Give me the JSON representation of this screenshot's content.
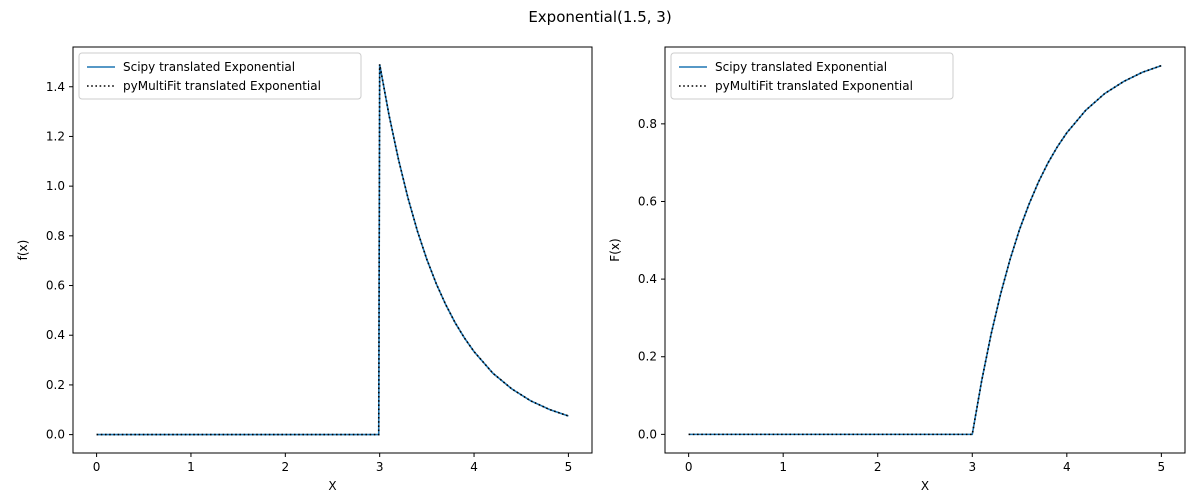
{
  "figure": {
    "suptitle": "Exponential(1.5, 3)"
  },
  "colors": {
    "scipy": "#1f77b4",
    "pymultifit": "#000000"
  },
  "chart_data": [
    {
      "type": "line",
      "title": "",
      "xlabel": "X",
      "ylabel": "f(x)",
      "xlim": [
        -0.25,
        5.25
      ],
      "ylim": [
        -0.074,
        1.56
      ],
      "xticks": [
        0,
        1,
        2,
        3,
        4,
        5
      ],
      "xtick_labels": [
        "0",
        "1",
        "2",
        "3",
        "4",
        "5"
      ],
      "yticks": [
        0.0,
        0.2,
        0.4,
        0.6,
        0.8,
        1.0,
        1.2,
        1.4
      ],
      "ytick_labels": [
        "0.0",
        "0.2",
        "0.4",
        "0.6",
        "0.8",
        "1.0",
        "1.2",
        "1.4"
      ],
      "grid": false,
      "legend": "top-left",
      "series": [
        {
          "name": "Scipy translated Exponential",
          "style": "solid",
          "x": [
            0,
            0.5,
            1,
            1.5,
            2,
            2.5,
            2.99,
            3.0,
            3.1,
            3.2,
            3.3,
            3.4,
            3.5,
            3.6,
            3.7,
            3.8,
            3.9,
            4.0,
            4.2,
            4.4,
            4.6,
            4.8,
            5.0
          ],
          "y": [
            0,
            0,
            0,
            0,
            0,
            0,
            0,
            1.49,
            1.284,
            1.106,
            0.952,
            0.819,
            0.705,
            0.607,
            0.523,
            0.45,
            0.388,
            0.334,
            0.247,
            0.184,
            0.136,
            0.101,
            0.075
          ]
        },
        {
          "name": "pyMultiFit translated Exponential",
          "style": "dotted",
          "x": [
            0,
            0.5,
            1,
            1.5,
            2,
            2.5,
            2.99,
            3.0,
            3.1,
            3.2,
            3.3,
            3.4,
            3.5,
            3.6,
            3.7,
            3.8,
            3.9,
            4.0,
            4.2,
            4.4,
            4.6,
            4.8,
            5.0
          ],
          "y": [
            0,
            0,
            0,
            0,
            0,
            0,
            0,
            1.49,
            1.284,
            1.106,
            0.952,
            0.819,
            0.705,
            0.607,
            0.523,
            0.45,
            0.388,
            0.334,
            0.247,
            0.184,
            0.136,
            0.101,
            0.075
          ]
        }
      ]
    },
    {
      "type": "line",
      "title": "",
      "xlabel": "X",
      "ylabel": "F(x)",
      "xlim": [
        -0.25,
        5.25
      ],
      "ylim": [
        -0.048,
        0.998
      ],
      "xticks": [
        0,
        1,
        2,
        3,
        4,
        5
      ],
      "xtick_labels": [
        "0",
        "1",
        "2",
        "3",
        "4",
        "5"
      ],
      "yticks": [
        0.0,
        0.2,
        0.4,
        0.6,
        0.8
      ],
      "ytick_labels": [
        "0.0",
        "0.2",
        "0.4",
        "0.6",
        "0.8"
      ],
      "grid": false,
      "legend": "top-left",
      "series": [
        {
          "name": "Scipy translated Exponential",
          "style": "solid",
          "x": [
            0,
            0.5,
            1,
            1.5,
            2,
            2.5,
            3.0,
            3.1,
            3.2,
            3.3,
            3.4,
            3.5,
            3.6,
            3.7,
            3.8,
            3.9,
            4.0,
            4.2,
            4.4,
            4.6,
            4.8,
            5.0
          ],
          "y": [
            0,
            0,
            0,
            0,
            0,
            0,
            0,
            0.139,
            0.259,
            0.362,
            0.451,
            0.528,
            0.593,
            0.65,
            0.699,
            0.741,
            0.777,
            0.835,
            0.878,
            0.909,
            0.933,
            0.95
          ]
        },
        {
          "name": "pyMultiFit translated Exponential",
          "style": "dotted",
          "x": [
            0,
            0.5,
            1,
            1.5,
            2,
            2.5,
            3.0,
            3.1,
            3.2,
            3.3,
            3.4,
            3.5,
            3.6,
            3.7,
            3.8,
            3.9,
            4.0,
            4.2,
            4.4,
            4.6,
            4.8,
            5.0
          ],
          "y": [
            0,
            0,
            0,
            0,
            0,
            0,
            0,
            0.139,
            0.259,
            0.362,
            0.451,
            0.528,
            0.593,
            0.65,
            0.699,
            0.741,
            0.777,
            0.835,
            0.878,
            0.909,
            0.933,
            0.95
          ]
        }
      ]
    }
  ]
}
